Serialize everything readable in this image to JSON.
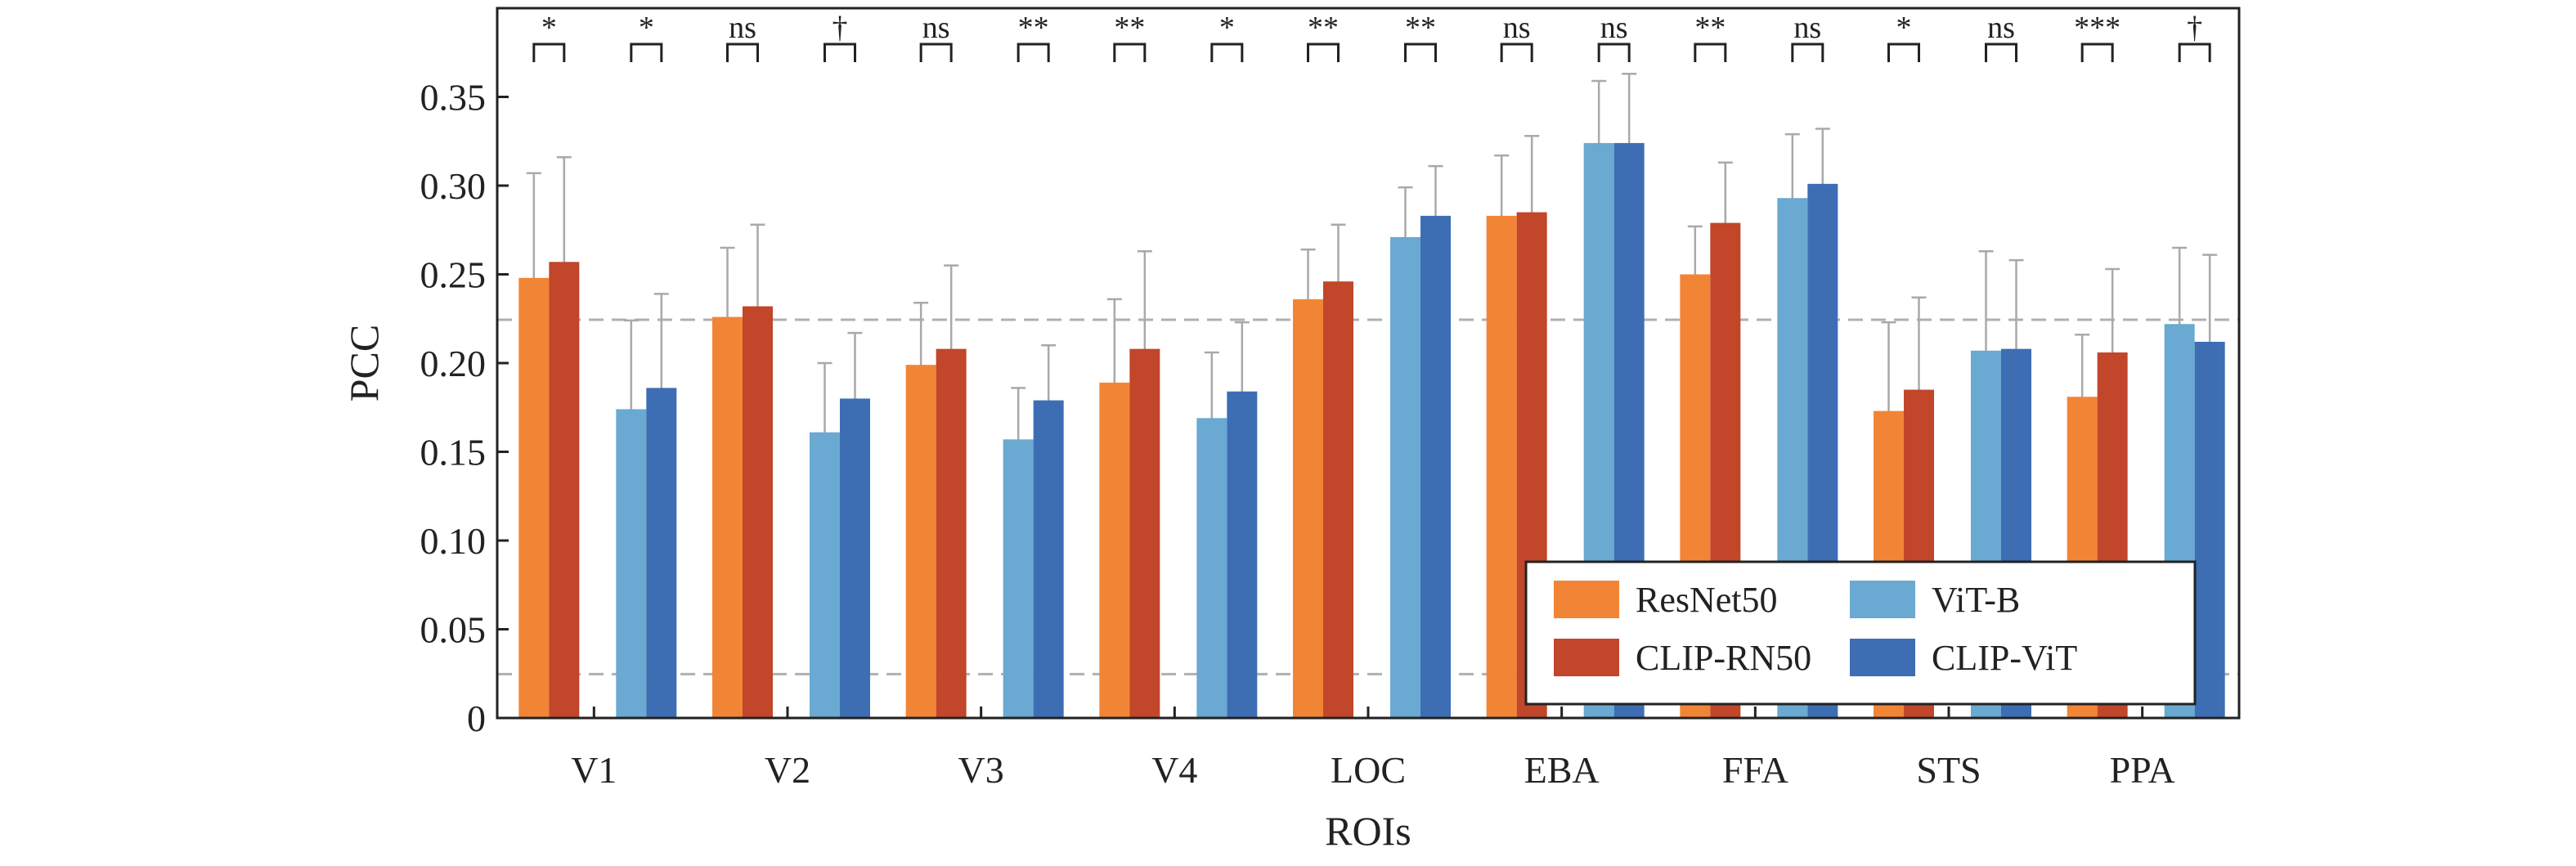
{
  "chart_data": {
    "type": "bar",
    "xlabel": "ROIs",
    "ylabel": "PCC",
    "ylim": [
      0,
      0.4
    ],
    "yticks": [
      0,
      0.05,
      0.1,
      0.15,
      0.2,
      0.25,
      0.3,
      0.35
    ],
    "ytick_labels": [
      "0",
      "0.05",
      "0.10",
      "0.15",
      "0.20",
      "0.25",
      "0.30",
      "0.35"
    ],
    "categories": [
      "V1",
      "V2",
      "V3",
      "V4",
      "LOC",
      "EBA",
      "FFA",
      "STS",
      "PPA"
    ],
    "series": [
      {
        "name": "ResNet50",
        "color": "#f28535",
        "values": [
          0.248,
          0.226,
          0.199,
          0.189,
          0.236,
          0.283,
          0.25,
          0.173,
          0.181
        ],
        "errors": [
          0.059,
          0.039,
          0.035,
          0.047,
          0.028,
          0.034,
          0.027,
          0.05,
          0.035
        ]
      },
      {
        "name": "CLIP-RN50",
        "color": "#c1462a",
        "values": [
          0.257,
          0.232,
          0.208,
          0.208,
          0.246,
          0.285,
          0.279,
          0.185,
          0.206
        ],
        "errors": [
          0.059,
          0.046,
          0.047,
          0.055,
          0.032,
          0.043,
          0.034,
          0.052,
          0.047
        ]
      },
      {
        "name": "ViT-B",
        "color": "#6aa9d1",
        "values": [
          0.174,
          0.161,
          0.157,
          0.169,
          0.271,
          0.324,
          0.293,
          0.207,
          0.222
        ],
        "errors": [
          0.05,
          0.039,
          0.029,
          0.037,
          0.028,
          0.035,
          0.036,
          0.056,
          0.043
        ]
      },
      {
        "name": "CLIP-ViT",
        "color": "#3d6eb4",
        "values": [
          0.186,
          0.18,
          0.179,
          0.184,
          0.283,
          0.324,
          0.301,
          0.208,
          0.212
        ],
        "errors": [
          0.053,
          0.037,
          0.031,
          0.039,
          0.028,
          0.039,
          0.031,
          0.05,
          0.049
        ]
      }
    ],
    "significance": [
      [
        "*",
        "*"
      ],
      [
        "ns",
        "†"
      ],
      [
        "ns",
        "**"
      ],
      [
        "**",
        "*"
      ],
      [
        "**",
        "**"
      ],
      [
        "ns",
        "ns"
      ],
      [
        "**",
        "ns"
      ],
      [
        "*",
        "ns"
      ],
      [
        "***",
        "†"
      ]
    ],
    "reference_lines": [
      0.0247,
      0.2244
    ],
    "legend": {
      "placement": "bottom-right",
      "columns": 2,
      "order": [
        "ResNet50",
        "ViT-B",
        "CLIP-RN50",
        "CLIP-ViT"
      ]
    },
    "grid": false,
    "errorbar_color": "#a9a9a9",
    "reference_line_color": "#b0b0b0"
  }
}
